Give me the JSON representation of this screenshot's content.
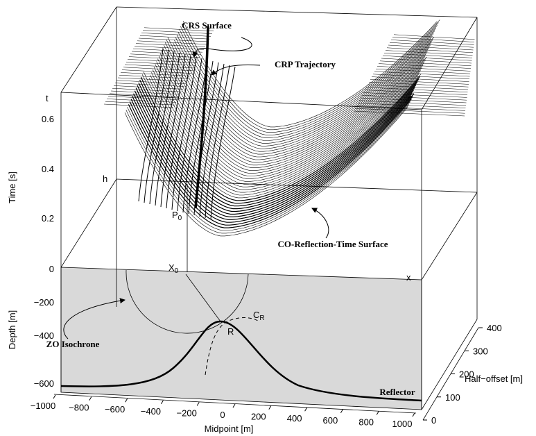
{
  "annotations": {
    "crs_surface": "CRS Surface",
    "crp_trajectory": "CRP Trajectory",
    "co_surface": "CO-Reflection-Time Surface",
    "zo_isochrone": "ZO Isochrone",
    "reflector": "Reflector"
  },
  "points": {
    "p0": {
      "main": "P",
      "sub": "0"
    },
    "x0": {
      "main": "X",
      "sub": "0"
    },
    "r": "R",
    "cr": {
      "main": "C",
      "sub": "R"
    },
    "x": "x",
    "t": "t",
    "h": "h"
  },
  "axes": {
    "time": {
      "title": "Time [s]",
      "ticks": [
        "0.6",
        "0.4",
        "0.2",
        "0"
      ]
    },
    "depth": {
      "title": "Depth [m]",
      "ticks": [
        "−200",
        "−400",
        "−600"
      ]
    },
    "midpoint": {
      "title": "Midpoint [m]",
      "ticks": [
        "−1000",
        "−800",
        "−600",
        "−400",
        "−200",
        "0",
        "200",
        "400",
        "600",
        "800",
        "1000"
      ]
    },
    "half_offset": {
      "title": "Half−offset [m]",
      "ticks": [
        "0",
        "100",
        "200",
        "300",
        "400"
      ]
    }
  }
}
